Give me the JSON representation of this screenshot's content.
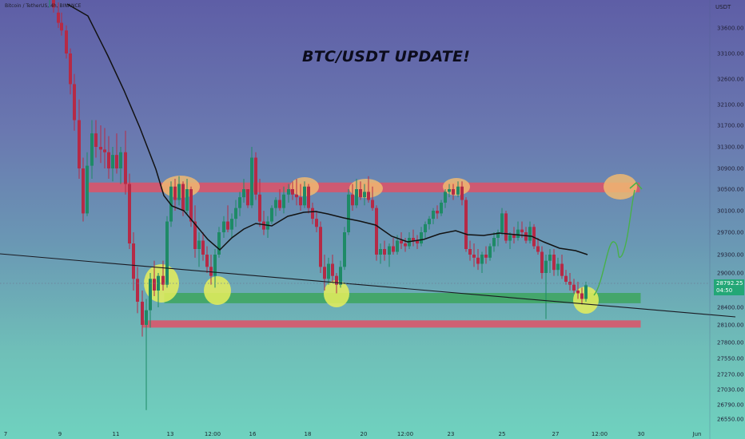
{
  "header": {
    "symbol_line": "Bitcoin / TetherUS, 4h, BINANCE"
  },
  "title": "BTC/USDT UPDATE!",
  "currency": "USDT",
  "last_price": {
    "value": "28792.25",
    "countdown": "04:50"
  },
  "colors": {
    "up": "#1e8a66",
    "down": "#b52a46",
    "resistance_zone": "#e05268",
    "support_zone": "#3ea65e",
    "highlight_orange": "#f0b871",
    "highlight_yellow": "#e6ee5a",
    "moving_average": "#121212",
    "projection": "#48b04a"
  },
  "chart_data": {
    "type": "candlestick",
    "title": "BTC/USDT UPDATE!",
    "symbol": "Bitcoin / TetherUS",
    "interval": "4h",
    "exchange": "BINANCE",
    "quote_currency": "USDT",
    "y_ticks": [
      "33600.00",
      "33100.00",
      "32600.00",
      "32100.00",
      "31700.00",
      "31300.00",
      "30900.00",
      "30500.00",
      "30100.00",
      "29700.00",
      "29300.00",
      "29000.00",
      "28700.00",
      "28400.00",
      "28100.00",
      "27800.00",
      "27550.00",
      "27270.00",
      "27030.00",
      "26790.00",
      "26550.00"
    ],
    "x_ticks": [
      "7",
      "9",
      "11",
      "13",
      "12:00",
      "16",
      "18",
      "20",
      "12:00",
      "23",
      "25",
      "27",
      "12:00",
      "30",
      "Jun"
    ],
    "last_price": 28792.25,
    "zones": [
      {
        "name": "resistance",
        "color": "red",
        "from": 30450,
        "to": 30620
      },
      {
        "name": "support",
        "color": "green",
        "from": 28480,
        "to": 28650
      },
      {
        "name": "lower support",
        "color": "red",
        "from": 28060,
        "to": 28170
      }
    ],
    "trendline": {
      "from": {
        "date": "7",
        "price": 29310
      },
      "to": {
        "date": "Jun",
        "price": 28240
      }
    },
    "moving_average": true,
    "projection": {
      "color": "green",
      "target": 30600
    },
    "highlights": {
      "orange_tops": 6,
      "yellow_bottoms": 4
    },
    "grid": false
  }
}
